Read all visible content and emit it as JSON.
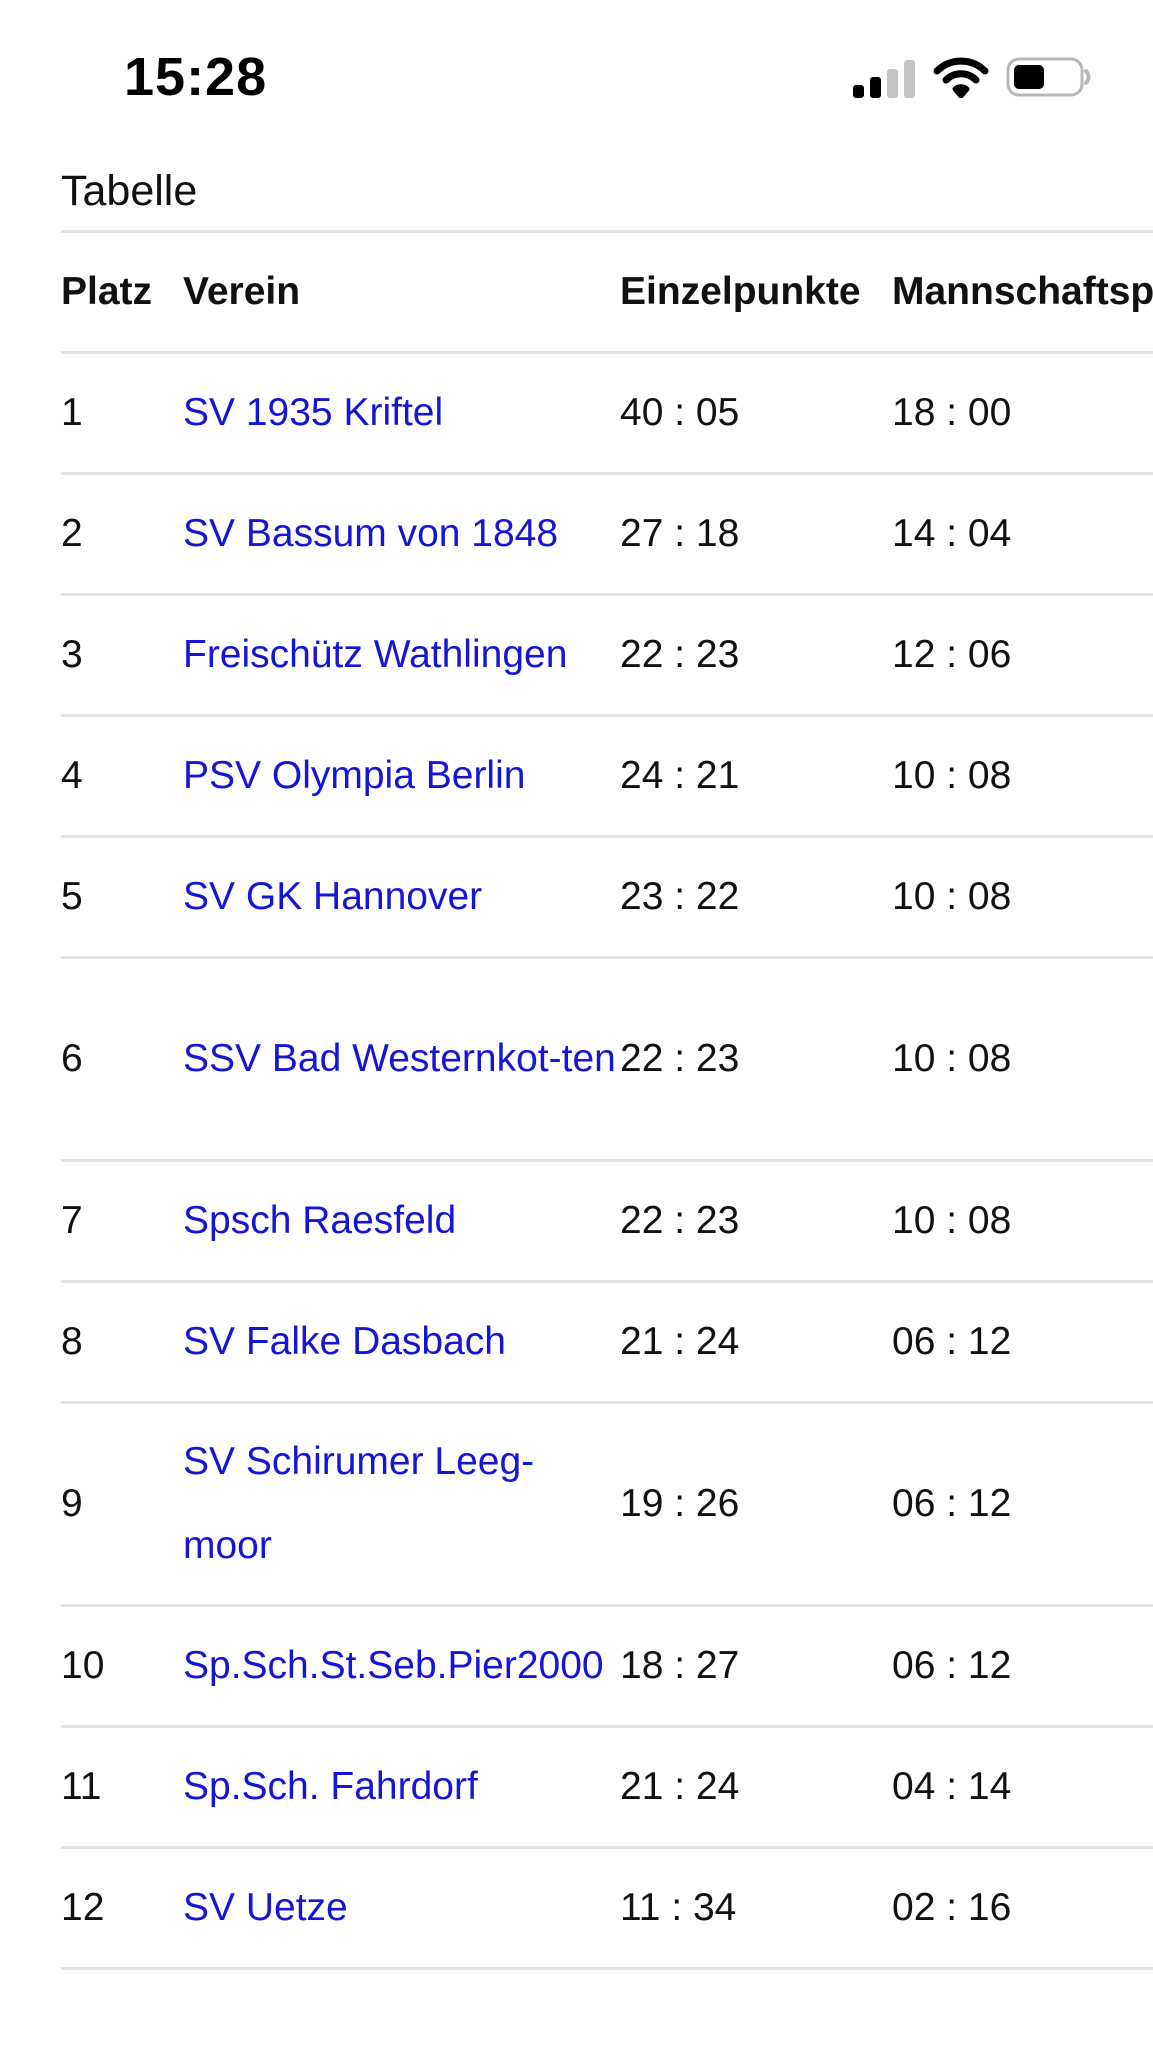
{
  "status_bar": {
    "time": "15:28"
  },
  "table": {
    "caption": "Tabelle",
    "headers": {
      "platz": "Platz",
      "verein": "Verein",
      "einzelpunkte": "Einzelpunkte",
      "mannschaftspunkte": "Mannschaftspunkte"
    },
    "rows": [
      {
        "platz": "1",
        "verein": "SV 1935 Kriftel",
        "einzel": "40 : 05",
        "mannschaft": "18 : 00"
      },
      {
        "platz": "2",
        "verein": "SV Bassum von 1848",
        "einzel": "27 : 18",
        "mannschaft": "14 : 04"
      },
      {
        "platz": "3",
        "verein": "Freischütz Wathlingen",
        "einzel": "22 : 23",
        "mannschaft": "12 : 06"
      },
      {
        "platz": "4",
        "verein": "PSV Olympia Berlin",
        "einzel": "24 : 21",
        "mannschaft": "10 : 08"
      },
      {
        "platz": "5",
        "verein": "SV GK Hannover",
        "einzel": "23 : 22",
        "mannschaft": "10 : 08"
      },
      {
        "platz": "6",
        "verein": "SSV Bad Westernkot-ten",
        "einzel": "22 : 23",
        "mannschaft": "10 : 08"
      },
      {
        "platz": "7",
        "verein": "Spsch Raesfeld",
        "einzel": "22 : 23",
        "mannschaft": "10 : 08"
      },
      {
        "platz": "8",
        "verein": "SV Falke Dasbach",
        "einzel": "21 : 24",
        "mannschaft": "06 : 12"
      },
      {
        "platz": "9",
        "verein": "SV Schirumer Leeg-moor",
        "einzel": "19 : 26",
        "mannschaft": "06 : 12"
      },
      {
        "platz": "10",
        "verein": "Sp.Sch.St.Seb.Pier2000",
        "einzel": "18 : 27",
        "mannschaft": "06 : 12"
      },
      {
        "platz": "11",
        "verein": "Sp.Sch. Fahrdorf",
        "einzel": "21 : 24",
        "mannschaft": "04 : 14"
      },
      {
        "platz": "12",
        "verein": "SV Uetze",
        "einzel": "11 : 34",
        "mannschaft": "02 : 16"
      }
    ]
  },
  "colors": {
    "link": "#1515d6",
    "divider": "#e4e4e4"
  },
  "icons": [
    "cellular-signal-icon",
    "wifi-icon",
    "battery-icon"
  ]
}
